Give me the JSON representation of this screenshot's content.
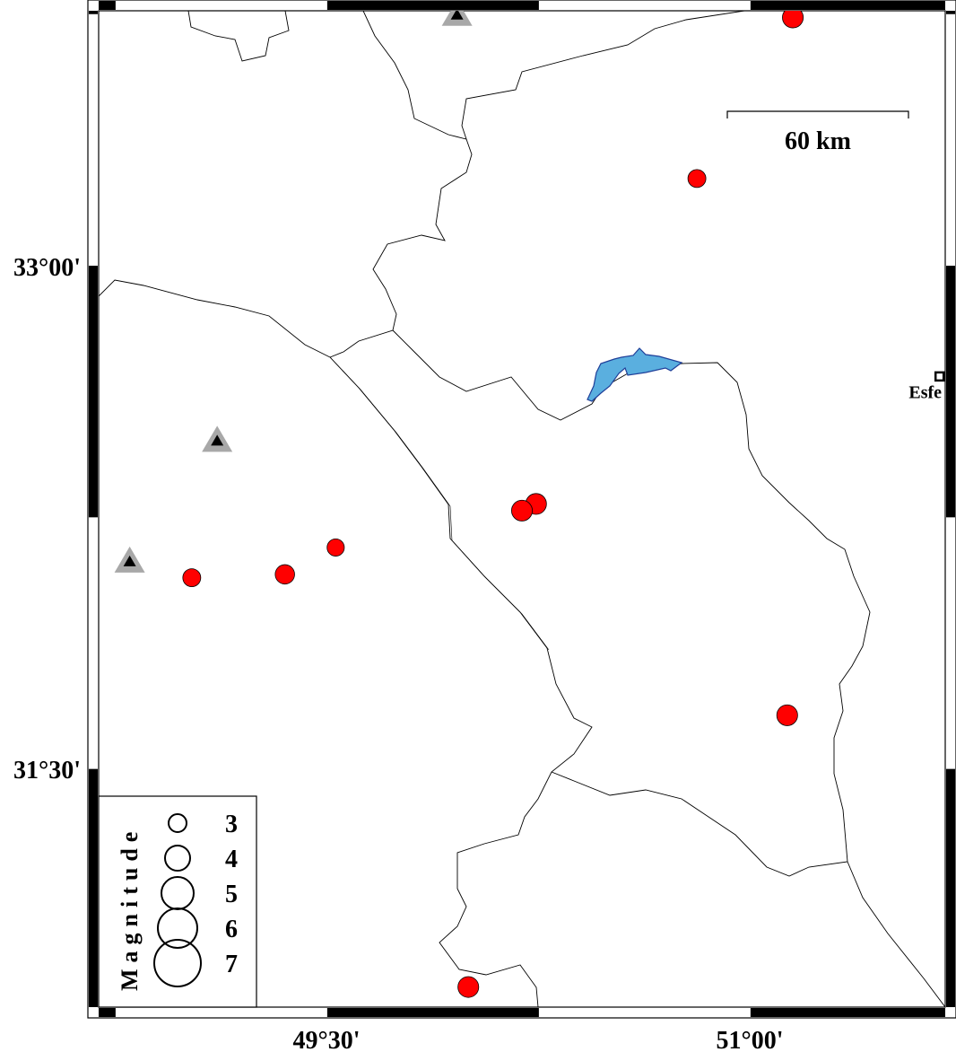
{
  "map": {
    "extent": {
      "lon_min": 48.69,
      "lon_max": 51.69,
      "lat_min": 30.79,
      "lat_max": 33.76
    },
    "lon_ticks": [
      {
        "value": 49.5,
        "label": "49°30'"
      },
      {
        "value": 51.0,
        "label": "51°00'"
      }
    ],
    "lat_ticks": [
      {
        "value": 33.0,
        "label": "33°00'"
      },
      {
        "value": 31.5,
        "label": "31°30'"
      }
    ],
    "frame_interval_deg": 0.75,
    "scale_bar": {
      "label": "60 km",
      "length_km": 60
    },
    "colors": {
      "event": "#ff0000",
      "lake": "#5aafdf",
      "lake_outline": "#1f3f99",
      "station_halo": "#a8a8a8",
      "station": "#000000",
      "border": "#000000"
    },
    "city": {
      "label": "Esfe",
      "lon": 51.67,
      "lat": 32.67,
      "icon": "square-city-marker"
    },
    "events": [
      {
        "lon": 51.15,
        "lat": 33.74,
        "mag": 3.4
      },
      {
        "lon": 50.81,
        "lat": 33.26,
        "mag": 3.0
      },
      {
        "lon": 50.24,
        "lat": 32.29,
        "mag": 3.4
      },
      {
        "lon": 50.19,
        "lat": 32.27,
        "mag": 3.4
      },
      {
        "lon": 49.53,
        "lat": 32.16,
        "mag": 2.9
      },
      {
        "lon": 49.35,
        "lat": 32.08,
        "mag": 3.2
      },
      {
        "lon": 49.02,
        "lat": 32.07,
        "mag": 3.0
      },
      {
        "lon": 51.13,
        "lat": 31.66,
        "mag": 3.4
      },
      {
        "lon": 50.0,
        "lat": 30.85,
        "mag": 3.4
      }
    ],
    "stations": [
      {
        "lon": 49.96,
        "lat": 33.75,
        "icon": "triangle-station"
      },
      {
        "lon": 49.11,
        "lat": 32.48,
        "icon": "triangle-station"
      },
      {
        "lon": 48.8,
        "lat": 32.12,
        "icon": "triangle-station"
      }
    ]
  },
  "legend": {
    "title": "Magnitude",
    "items": [
      {
        "mag": 3,
        "label": "3"
      },
      {
        "mag": 4,
        "label": "4"
      },
      {
        "mag": 5,
        "label": "5"
      },
      {
        "mag": 6,
        "label": "6"
      },
      {
        "mag": 7,
        "label": "7"
      }
    ]
  }
}
